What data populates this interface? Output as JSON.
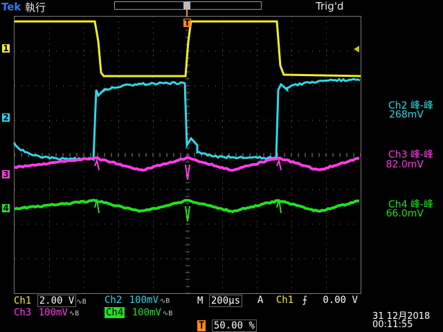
{
  "header": {
    "brand": "Tek",
    "run_state": "執行",
    "trigger_state": "Trig'd"
  },
  "markers": {
    "ch1": "1",
    "ch2": "2",
    "ch3": "3",
    "ch4": "4",
    "trigger": "T"
  },
  "measurements": [
    {
      "name": "Ch2 峰-峰",
      "value": "268mV",
      "color": "#30d8e8"
    },
    {
      "name": "Ch3 峰-峰",
      "value": "82.0mV",
      "color": "#ff3ce8"
    },
    {
      "name": "Ch4 峰-峰",
      "value": "66.0mV",
      "color": "#20e020"
    }
  ],
  "settings": {
    "ch1_label": "Ch1",
    "ch1_scale": "2.00 V",
    "ch2_label": "Ch2",
    "ch2_scale": "100mV",
    "ch3_label": "Ch3",
    "ch3_scale": "100mV",
    "ch4_label": "Ch4",
    "ch4_scale": "100mV",
    "bw_symbol": "∿B",
    "timebase_label": "M",
    "timebase": "200µs",
    "trig_mode": "A",
    "trig_source": "Ch1",
    "trig_slope": "⨍",
    "trig_level": "0.00 V",
    "trig_position": "50.00 %"
  },
  "datetime": {
    "date": "31 12月2018",
    "time": "00:11:55"
  },
  "colors": {
    "ch1": "#f2ee2a",
    "ch2": "#30d8e8",
    "ch3": "#ff3ce8",
    "ch4": "#20e020",
    "trigger": "#ff8a1a",
    "grid": "#7a7a7a"
  }
}
